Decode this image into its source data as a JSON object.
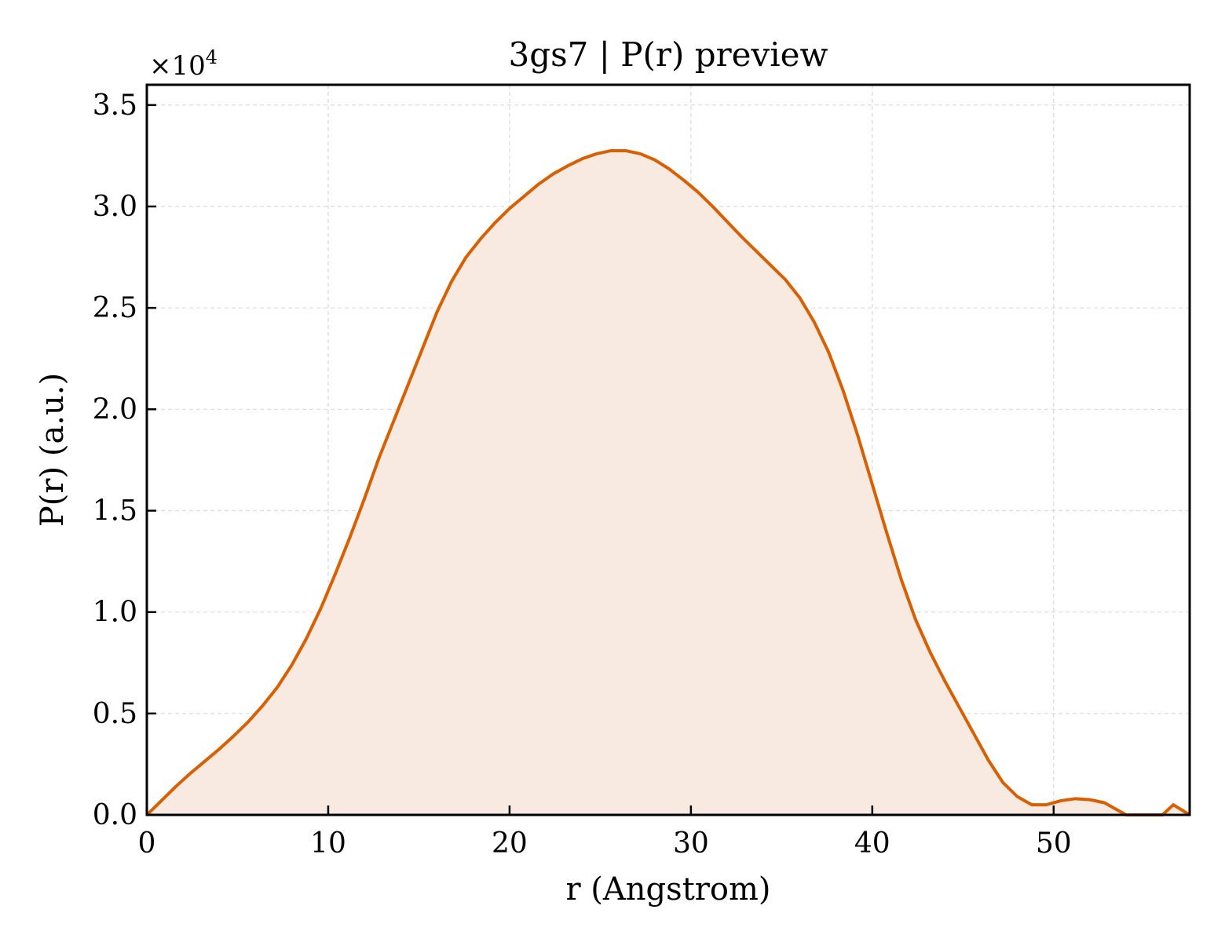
{
  "chart_data": {
    "type": "area",
    "title": "3gs7 | P(r) preview",
    "xlabel": "r (Angstrom)",
    "ylabel": "P(r) (a.u.)",
    "y_multiplier_base": "×10",
    "y_multiplier_exp": "4",
    "xlim": [
      0,
      57.5
    ],
    "ylim": [
      0,
      36000
    ],
    "x_ticks": [
      0,
      10,
      20,
      30,
      40,
      50
    ],
    "x_tick_labels": [
      "0",
      "10",
      "20",
      "30",
      "40",
      "50"
    ],
    "y_ticks": [
      0,
      5000,
      10000,
      15000,
      20000,
      25000,
      30000,
      35000
    ],
    "y_tick_labels": [
      "0.0",
      "0.5",
      "1.0",
      "1.5",
      "2.0",
      "2.5",
      "3.0",
      "3.5"
    ],
    "grid": true,
    "colors": {
      "line": "#d95f02",
      "fill": "#f8eae0",
      "grid": "#d9d9d9",
      "axes": "#000000"
    },
    "series": [
      {
        "points": [
          [
            0.0,
            0
          ],
          [
            0.8,
            700
          ],
          [
            1.6,
            1400
          ],
          [
            2.4,
            2050
          ],
          [
            3.2,
            2650
          ],
          [
            4.0,
            3250
          ],
          [
            4.8,
            3900
          ],
          [
            5.6,
            4600
          ],
          [
            6.4,
            5400
          ],
          [
            7.2,
            6300
          ],
          [
            8.0,
            7400
          ],
          [
            8.8,
            8700
          ],
          [
            9.6,
            10200
          ],
          [
            10.4,
            11900
          ],
          [
            11.2,
            13700
          ],
          [
            12.0,
            15600
          ],
          [
            12.8,
            17600
          ],
          [
            13.6,
            19400
          ],
          [
            14.4,
            21200
          ],
          [
            15.2,
            23000
          ],
          [
            16.0,
            24800
          ],
          [
            16.8,
            26300
          ],
          [
            17.6,
            27500
          ],
          [
            18.4,
            28400
          ],
          [
            19.2,
            29200
          ],
          [
            20.0,
            29900
          ],
          [
            20.8,
            30500
          ],
          [
            21.6,
            31100
          ],
          [
            22.4,
            31600
          ],
          [
            23.2,
            32000
          ],
          [
            24.0,
            32350
          ],
          [
            24.8,
            32600
          ],
          [
            25.6,
            32750
          ],
          [
            26.4,
            32750
          ],
          [
            27.2,
            32600
          ],
          [
            28.0,
            32300
          ],
          [
            28.8,
            31850
          ],
          [
            29.6,
            31300
          ],
          [
            30.4,
            30700
          ],
          [
            31.2,
            30000
          ],
          [
            32.0,
            29250
          ],
          [
            32.8,
            28500
          ],
          [
            33.6,
            27800
          ],
          [
            34.4,
            27100
          ],
          [
            35.2,
            26400
          ],
          [
            36.0,
            25500
          ],
          [
            36.8,
            24300
          ],
          [
            37.6,
            22800
          ],
          [
            38.4,
            20900
          ],
          [
            39.2,
            18700
          ],
          [
            40.0,
            16300
          ],
          [
            40.8,
            13900
          ],
          [
            41.6,
            11600
          ],
          [
            42.4,
            9600
          ],
          [
            43.2,
            8000
          ],
          [
            44.0,
            6600
          ],
          [
            44.8,
            5300
          ],
          [
            45.6,
            4000
          ],
          [
            46.4,
            2700
          ],
          [
            47.2,
            1600
          ],
          [
            48.0,
            900
          ],
          [
            48.8,
            500
          ],
          [
            49.6,
            500
          ],
          [
            50.4,
            700
          ],
          [
            51.2,
            800
          ],
          [
            52.0,
            750
          ],
          [
            52.8,
            600
          ],
          [
            53.6,
            200
          ],
          [
            54.0,
            0
          ],
          [
            56.0,
            0
          ],
          [
            56.6,
            500
          ],
          [
            57.5,
            0
          ]
        ]
      }
    ]
  }
}
